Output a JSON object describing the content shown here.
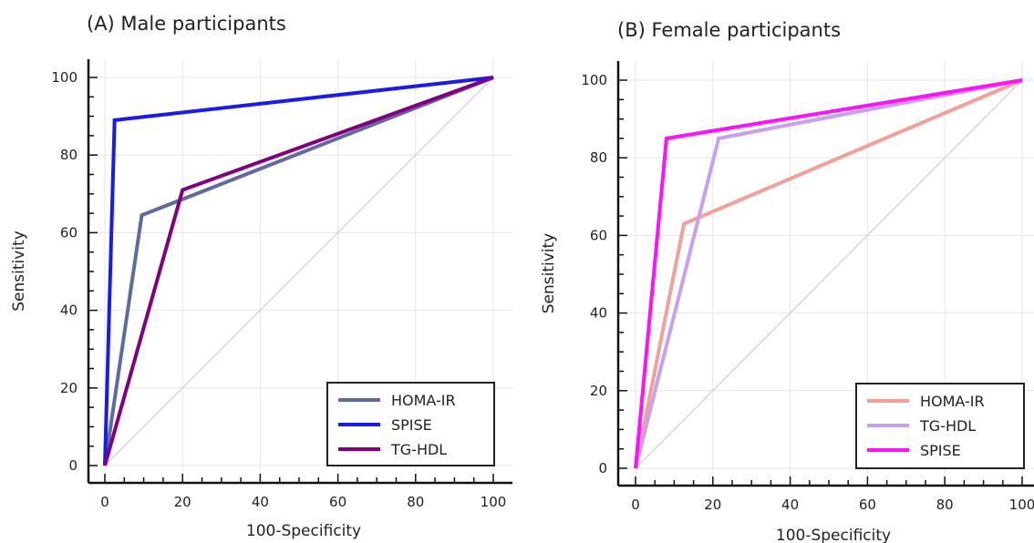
{
  "chart_data": [
    {
      "type": "line",
      "title": "(A) Male participants",
      "xlabel": "100-Specificity",
      "ylabel": "Sensitivity",
      "xlim": [
        0,
        100
      ],
      "ylim": [
        0,
        100
      ],
      "xticks": [
        "0",
        "20",
        "40",
        "60",
        "80",
        "100"
      ],
      "yticks": [
        "0",
        "20",
        "40",
        "60",
        "80",
        "100"
      ],
      "grid": true,
      "reference_line": "diagonal",
      "legend_position": "bottom-right",
      "series": [
        {
          "name": "HOMA-IR",
          "color": "#5f6aa0",
          "x": [
            0,
            9.5,
            100
          ],
          "y": [
            0,
            64.5,
            100
          ]
        },
        {
          "name": "SPISE",
          "color": "#1a1aee",
          "x": [
            0,
            2.5,
            100
          ],
          "y": [
            0,
            89,
            100
          ]
        },
        {
          "name": "TG-HDL",
          "color": "#800080",
          "x": [
            0,
            20,
            100
          ],
          "y": [
            0,
            71,
            100
          ]
        }
      ]
    },
    {
      "type": "line",
      "title": "(B) Female participants",
      "xlabel": "100-Specificity",
      "ylabel": "Sensitivity",
      "xlim": [
        0,
        100
      ],
      "ylim": [
        0,
        100
      ],
      "xticks": [
        "0",
        "20",
        "40",
        "60",
        "80",
        "100"
      ],
      "yticks": [
        "0",
        "20",
        "40",
        "60",
        "80",
        "100"
      ],
      "grid": true,
      "reference_line": "diagonal",
      "legend_position": "bottom-right",
      "series": [
        {
          "name": "HOMA-IR",
          "color": "#f4a09a",
          "x": [
            0,
            12.5,
            100
          ],
          "y": [
            0,
            63,
            100
          ]
        },
        {
          "name": "TG-HDL",
          "color": "#c8a0f0",
          "x": [
            0,
            21.5,
            100
          ],
          "y": [
            0,
            85,
            100
          ]
        },
        {
          "name": "SPISE",
          "color": "#ff10ff",
          "x": [
            0,
            8,
            100
          ],
          "y": [
            0,
            85,
            100
          ]
        }
      ]
    }
  ]
}
